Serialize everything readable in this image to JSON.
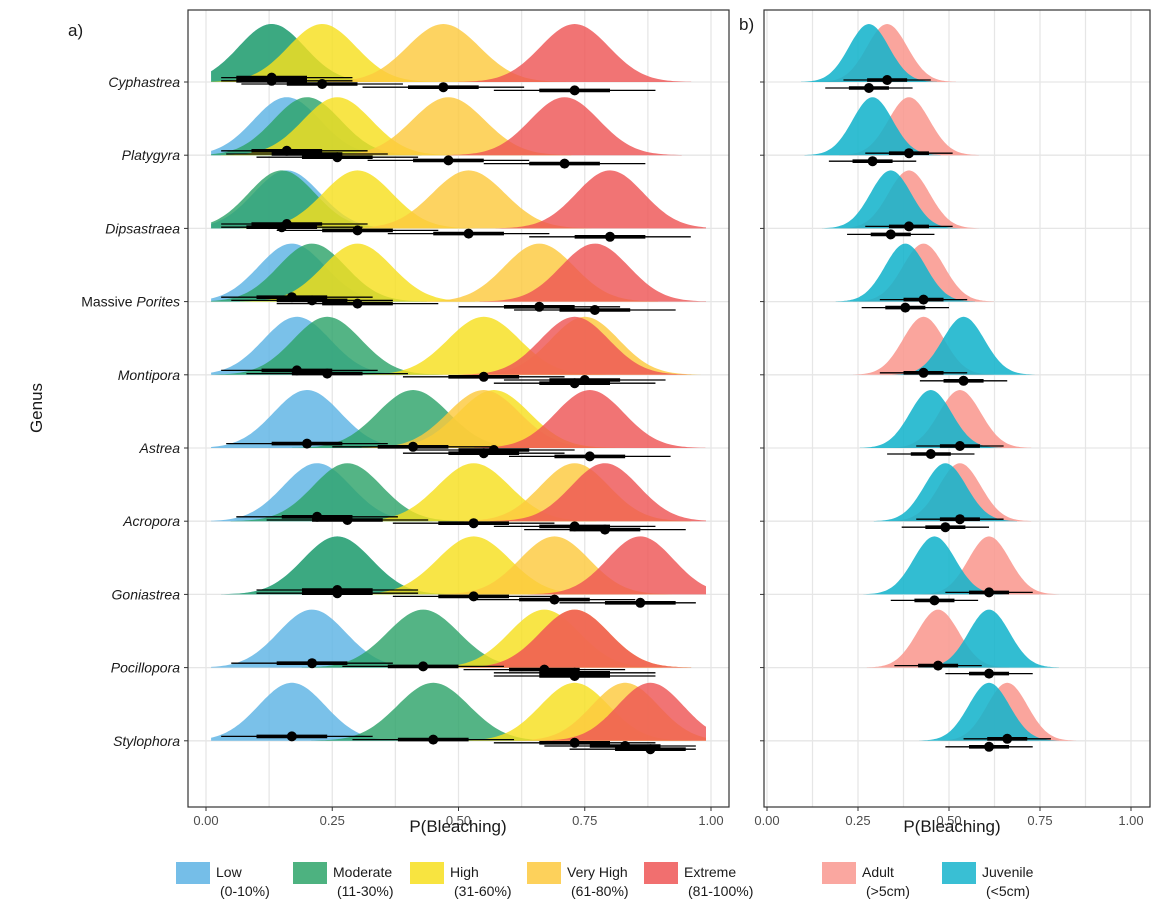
{
  "chart_data": [
    {
      "panel_label": "a)",
      "type": "ridgeline",
      "xlabel": "P(Bleaching)",
      "ylabel": "Genus",
      "xlim": [
        0,
        1
      ],
      "xticks": [
        "0.00",
        "0.25",
        "0.50",
        "0.75",
        "1.00"
      ],
      "grid": true,
      "legend_position": "bottom",
      "categories": [
        {
          "label": "Cyphastrea",
          "italic": true
        },
        {
          "label": "Platygyra",
          "italic": true
        },
        {
          "label": "Dipsastraea",
          "italic": true
        },
        {
          "label": "Massive Porites",
          "prefix": "Massive ",
          "italic_part": "Porites"
        },
        {
          "label": "Montipora",
          "italic": true
        },
        {
          "label": "Astrea",
          "italic": true
        },
        {
          "label": "Acropora",
          "italic": true
        },
        {
          "label": "Goniastrea",
          "italic": true
        },
        {
          "label": "Pocillopora",
          "italic": true
        },
        {
          "label": "Stylophora",
          "italic": true
        }
      ],
      "series": [
        {
          "name": "Low",
          "sublabel": "(0-10%)",
          "color": "#5DB3E4",
          "medians": [
            0.13,
            0.16,
            0.16,
            0.17,
            0.18,
            0.2,
            0.22,
            0.26,
            0.21,
            0.17
          ]
        },
        {
          "name": "Moderate",
          "sublabel": "(11-30%)",
          "color": "#2EA46A",
          "medians": [
            0.13,
            0.2,
            0.15,
            0.21,
            0.24,
            0.41,
            0.28,
            0.26,
            0.43,
            0.45
          ]
        },
        {
          "name": "High",
          "sublabel": "(31-60%)",
          "color": "#F7DF1E",
          "medians": [
            0.23,
            0.26,
            0.3,
            0.3,
            0.55,
            0.57,
            0.53,
            0.53,
            0.67,
            0.73
          ]
        },
        {
          "name": "Very High",
          "sublabel": "(61-80%)",
          "color": "#FDC93E",
          "medians": [
            0.47,
            0.48,
            0.52,
            0.66,
            0.75,
            0.55,
            0.73,
            0.69,
            0.73,
            0.83
          ]
        },
        {
          "name": "Extreme",
          "sublabel": "(81-100%)",
          "color": "#EE5656",
          "medians": [
            0.73,
            0.71,
            0.8,
            0.77,
            0.73,
            0.76,
            0.79,
            0.86,
            0.73,
            0.88
          ]
        }
      ]
    },
    {
      "panel_label": "b)",
      "type": "ridgeline",
      "xlabel": "P(Bleaching)",
      "xlim": [
        0,
        1
      ],
      "xticks": [
        "0.00",
        "0.25",
        "0.50",
        "0.75",
        "1.00"
      ],
      "grid": true,
      "legend_position": "bottom",
      "series": [
        {
          "name": "Adult",
          "sublabel": "(>5cm)",
          "color": "#F9988F",
          "medians": [
            0.33,
            0.39,
            0.39,
            0.43,
            0.43,
            0.53,
            0.53,
            0.61,
            0.47,
            0.66
          ]
        },
        {
          "name": "Juvenile",
          "sublabel": "(<5cm)",
          "color": "#16B4CC",
          "medians": [
            0.28,
            0.29,
            0.34,
            0.38,
            0.54,
            0.45,
            0.49,
            0.46,
            0.61,
            0.61
          ]
        }
      ]
    }
  ]
}
